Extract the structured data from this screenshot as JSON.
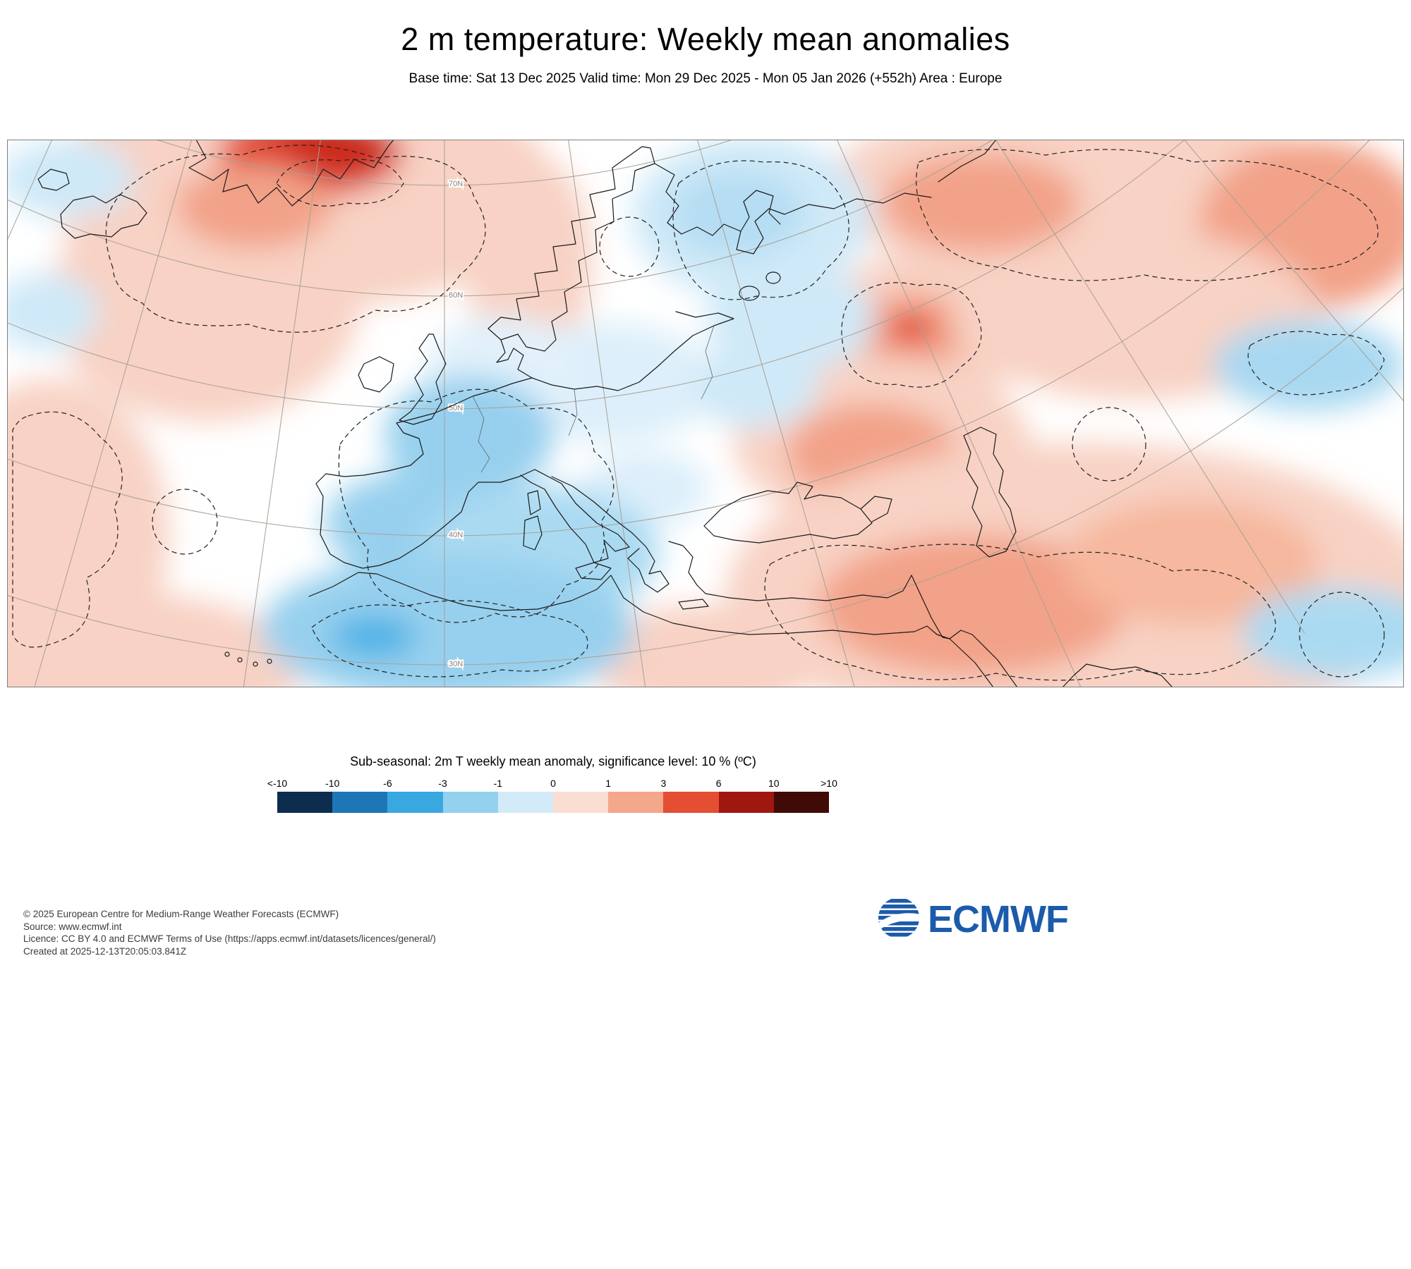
{
  "header": {
    "title": "2 m temperature: Weekly mean anomalies",
    "subtitle": "Base time: Sat 13 Dec 2025 Valid time: Mon 29 Dec 2025 - Mon 05 Jan 2026 (+552h) Area : Europe"
  },
  "map": {
    "area_label": "Europe",
    "graticule_labels": [
      "70N",
      "60N",
      "50N",
      "40N",
      "30N"
    ]
  },
  "legend": {
    "title": "Sub-seasonal: 2m T weekly mean anomaly, significance level: 10 % (ºC)",
    "tick_labels": [
      "<-10",
      "-10",
      "-6",
      "-3",
      "-1",
      "0",
      "1",
      "3",
      "6",
      "10",
      ">10"
    ],
    "colors": [
      "#0d2d4f",
      "#1d76b5",
      "#3aa8e0",
      "#93d1ef",
      "#d3eaf8",
      "#fbded3",
      "#f5a78c",
      "#e44e33",
      "#a01710",
      "#400b06"
    ]
  },
  "footer": {
    "lines": [
      "© 2025 European Centre for Medium-Range Weather Forecasts (ECMWF)",
      "Source: www.ecmwf.int",
      "Licence: CC BY 4.0 and ECMWF Terms of Use (https://apps.ecmwf.int/datasets/licences/general/)",
      "Created at 2025-12-13T20:05:03.841Z"
    ],
    "logo_text": "ECMWF",
    "logo_color": "#1c5bab"
  }
}
